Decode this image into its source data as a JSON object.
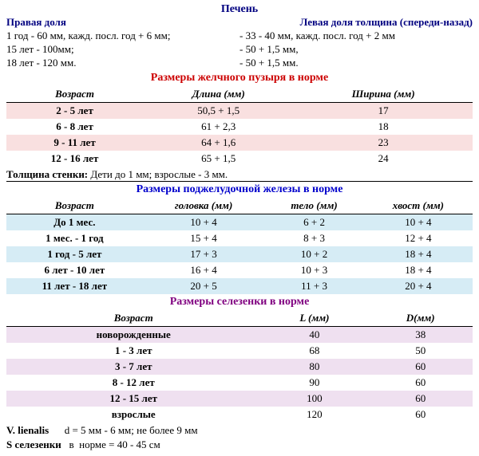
{
  "liver": {
    "title": "Печень",
    "right": {
      "label": "Правая доля",
      "l1": "1 год  - 60 мм, кажд. посл. год + 6 мм;",
      "l2": "15 лет - 100мм;",
      "l3": "18 лет - 120 мм."
    },
    "left": {
      "label": "Левая доля толщина (спереди-назад)",
      "l1": "- 33 - 40 мм, кажд. посл. год  + 2 мм",
      "l2": "- 50 + 1,5 мм,",
      "l3": "- 50 + 1,5 мм."
    }
  },
  "gb": {
    "title": "Размеры желчного пузыря в норме",
    "cols": [
      "Возраст",
      "Длина (мм)",
      "Ширина (мм)"
    ],
    "rows": [
      {
        "age": "2 - 5 лет",
        "len": "50,5 + 1,5",
        "wid": "17"
      },
      {
        "age": "6 - 8 лет",
        "len": "61 + 2,3",
        "wid": "18"
      },
      {
        "age": "9 - 11 лет",
        "len": "64 + 1,6",
        "wid": "23"
      },
      {
        "age": "12 - 16 лет",
        "len": "65 + 1,5",
        "wid": "24"
      }
    ],
    "note_label": "Толщина стенки:",
    "note": "  Дети  до 1 мм;  взрослые - 3 мм.",
    "colors": {
      "even": "#f9e0e0",
      "odd": "#ffffff"
    }
  },
  "panc": {
    "title": "Размеры поджелудочной железы в норме",
    "cols": [
      "Возраст",
      "головка (мм)",
      "тело (мм)",
      "хвост (мм)"
    ],
    "rows": [
      {
        "age": "До 1 мес.",
        "c1": "10 + 4",
        "c2": "6 + 2",
        "c3": "10 + 4"
      },
      {
        "age": "1 мес. - 1 год",
        "c1": "15 + 4",
        "c2": "8 + 3",
        "c3": "12 + 4"
      },
      {
        "age": "1 год - 5 лет",
        "c1": "17 + 3",
        "c2": "10 + 2",
        "c3": "18 + 4"
      },
      {
        "age": "6 лет - 10 лет",
        "c1": "16 + 4",
        "c2": "10 + 3",
        "c3": "18 + 4"
      },
      {
        "age": "11 лет - 18 лет",
        "c1": "20 + 5",
        "c2": "11 + 3",
        "c3": "20 + 4"
      }
    ],
    "colors": {
      "even": "#d6ecf5",
      "odd": "#ffffff"
    }
  },
  "spleen": {
    "title": "Размеры селезенки в норме",
    "cols": [
      "Возраст",
      "L (мм)",
      "D(мм)"
    ],
    "rows": [
      {
        "age": "новорожденные",
        "l": "40",
        "d": "38"
      },
      {
        "age": "1 - 3 лет",
        "l": "68",
        "d": "50"
      },
      {
        "age": "3 - 7 лет",
        "l": "80",
        "d": "60"
      },
      {
        "age": "8 - 12 лет",
        "l": "90",
        "d": "60"
      },
      {
        "age": "12 - 15 лет",
        "l": "100",
        "d": "60"
      },
      {
        "age": "взрослые",
        "l": "120",
        "d": "60"
      }
    ],
    "colors": {
      "even": "#efe0f0",
      "odd": "#ffffff"
    },
    "n1_label": "V. lienalis",
    "n1": "      d = 5 мм - 6 мм; не более 9 мм",
    "n2_label": "S селезенки",
    "n2": "   в  норме = 40 - 45 см"
  }
}
